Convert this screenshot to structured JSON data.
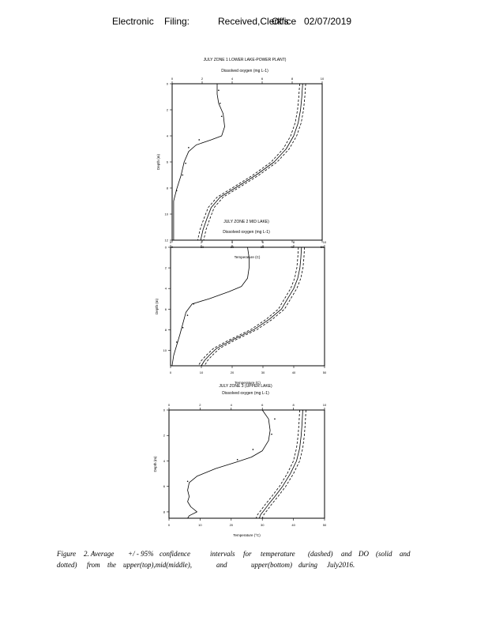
{
  "header": {
    "label": "Electronic",
    "filing": "Filing:",
    "received": "Received,Clerk's",
    "office": "Office",
    "date": "02/07/2019"
  },
  "caption": {
    "line1": [
      "Figure",
      "2. Average",
      "+/ - 95%",
      "confidence",
      "intervals",
      "for",
      "temperature",
      "(dashed)",
      "and",
      "DO",
      "(solid",
      "and"
    ],
    "line2": [
      "dotted)",
      "from",
      "the",
      "upper(top),mid(middle),",
      "and",
      "upper(bottom)",
      "during",
      "July2016."
    ]
  },
  "chart_data": [
    {
      "type": "line",
      "title": "JULY ZONE 1 LOWER LAKE-POWER PLANT)",
      "top_axis_label": "Dissolved oxygen (mg L-1)",
      "bottom_axis_label": "Temperature (C)",
      "left_axis_label": "Depth (m)",
      "do_ticks": [
        "0",
        "2",
        "4",
        "6",
        "8",
        "10"
      ],
      "temp_ticks": [
        "0",
        "10",
        "20",
        "30",
        "40",
        "50"
      ],
      "depth_ticks": [
        "0",
        "2",
        "4",
        "6",
        "8",
        "10",
        "12"
      ],
      "ylim": [
        0,
        12
      ],
      "do_xlim": [
        0,
        10
      ],
      "temp_xlim": [
        0,
        50
      ],
      "series": [
        {
          "kind": "do_solid",
          "x": [
            3.0,
            3.0,
            3.1,
            3.4,
            3.5,
            3.3,
            2.6,
            1.6,
            1.1,
            0.8,
            0.6,
            0.3,
            0.1,
            0.1,
            0.1
          ],
          "y": [
            0,
            0.8,
            1.5,
            2.3,
            3.3,
            4.0,
            4.3,
            4.7,
            5.2,
            6.0,
            7.0,
            8.1,
            9.0,
            10.5,
            12
          ]
        },
        {
          "kind": "do_dotted",
          "x": [
            3.1,
            3.2,
            3.3,
            1.8,
            1.1,
            0.9,
            0.7,
            0.3
          ],
          "y": [
            0.5,
            1.5,
            2.5,
            4.3,
            4.9,
            6.1,
            7.0,
            8.2
          ]
        },
        {
          "kind": "temp_mean",
          "x": [
            43.5,
            43.2,
            42.8,
            42.0,
            40.5,
            38.0,
            34.0,
            28.0,
            21.0,
            16.0,
            13.0,
            11.5,
            10.3,
            9.5
          ],
          "y": [
            0,
            1,
            2,
            3,
            4,
            5,
            6,
            7,
            8,
            8.7,
            9.5,
            10.4,
            11.2,
            12
          ]
        },
        {
          "kind": "temp_low",
          "x": [
            42.5,
            42.2,
            41.8,
            41.0,
            39.5,
            37.0,
            33.0,
            27.0,
            20.0,
            15.0,
            12.0,
            10.5,
            9.3,
            8.5
          ],
          "y": [
            0,
            1,
            2,
            3,
            4,
            5,
            6,
            7,
            8,
            8.7,
            9.5,
            10.4,
            11.2,
            12
          ]
        },
        {
          "kind": "temp_high",
          "x": [
            44.5,
            44.2,
            43.8,
            43.0,
            41.5,
            39.0,
            35.0,
            29.0,
            22.0,
            17.0,
            14.0,
            12.5,
            11.3,
            10.5
          ],
          "y": [
            0,
            1,
            2,
            3,
            4,
            5,
            6,
            7,
            8,
            8.7,
            9.5,
            10.4,
            11.2,
            12
          ]
        }
      ]
    },
    {
      "type": "line",
      "title": "JULY ZONE 2 MID LAKE)",
      "top_axis_label": "Dissolved oxygen (mg L-1)",
      "bottom_axis_label": "Temperature (C)",
      "left_axis_label": "Depth (m)",
      "do_ticks": [
        "0",
        "2",
        "4",
        "6",
        "8",
        "10"
      ],
      "temp_ticks": [
        "0",
        "10",
        "20",
        "30",
        "40",
        "50"
      ],
      "depth_ticks": [
        "0",
        "2",
        "4",
        "6",
        "8",
        "10"
      ],
      "ylim": [
        0,
        11.5
      ],
      "do_xlim": [
        0,
        10
      ],
      "temp_xlim": [
        0,
        50
      ],
      "series": [
        {
          "kind": "do_solid",
          "x": [
            5.0,
            5.1,
            5.1,
            5.0,
            4.6,
            3.8,
            2.5,
            1.4,
            1.0,
            0.8,
            0.6,
            0.4,
            0.2,
            0.1
          ],
          "y": [
            0,
            1,
            2,
            3,
            3.8,
            4.3,
            5.0,
            5.5,
            6.3,
            7.4,
            8.5,
            9.5,
            10.5,
            11.5
          ]
        },
        {
          "kind": "do_dotted",
          "x": [
            1.5,
            1.1,
            0.8,
            0.4
          ],
          "y": [
            5.5,
            6.6,
            7.8,
            9.2
          ]
        },
        {
          "kind": "temp_mean",
          "x": [
            42.5,
            42.3,
            42.0,
            41.3,
            40.0,
            38.0,
            36.0,
            32.0,
            27.0,
            20.0,
            15.0,
            12.5,
            11.0,
            10.0
          ],
          "y": [
            0,
            1,
            2,
            3,
            4,
            5,
            6,
            7,
            8,
            9,
            9.8,
            10.5,
            11.0,
            11.5
          ]
        },
        {
          "kind": "temp_low",
          "x": [
            41.5,
            41.3,
            41.0,
            40.3,
            39.0,
            37.0,
            35.0,
            31.0,
            26.0,
            19.0,
            14.0,
            11.5,
            10.0,
            9.0
          ],
          "y": [
            0,
            1,
            2,
            3,
            4,
            5,
            6,
            7,
            8,
            9,
            9.8,
            10.5,
            11.0,
            11.5
          ]
        },
        {
          "kind": "temp_high",
          "x": [
            43.5,
            43.3,
            43.0,
            42.3,
            41.0,
            39.0,
            37.0,
            33.0,
            28.0,
            21.0,
            16.0,
            13.5,
            12.0,
            11.0
          ],
          "y": [
            0,
            1,
            2,
            3,
            4,
            5,
            6,
            7,
            8,
            9,
            9.8,
            10.5,
            11.0,
            11.5
          ]
        }
      ]
    },
    {
      "type": "line",
      "title": "JULY ZONE 3 (UPPER LAKE)",
      "top_axis_label": "Dissolved oxygen (mg L-1)",
      "bottom_axis_label": "Temperature (°C)",
      "left_axis_label": "Depth (m)",
      "do_ticks": [
        "0",
        "2",
        "4",
        "6",
        "8",
        "10"
      ],
      "temp_ticks": [
        "0",
        "10",
        "20",
        "30",
        "40",
        "50"
      ],
      "depth_ticks": [
        "0",
        "2",
        "4",
        "6",
        "8"
      ],
      "ylim": [
        0,
        8.5
      ],
      "do_xlim": [
        0,
        10
      ],
      "temp_xlim": [
        0,
        50
      ],
      "series": [
        {
          "kind": "do_solid",
          "x": [
            6.0,
            6.4,
            6.5,
            6.4,
            6.0,
            5.3,
            4.3,
            3.0,
            1.8,
            1.3,
            1.2,
            1.3,
            1.2,
            1.4,
            1.8,
            1.3,
            1.2
          ],
          "y": [
            0,
            0.7,
            1.6,
            2.4,
            3.2,
            3.7,
            4.1,
            4.6,
            5.2,
            5.7,
            6.3,
            6.8,
            7.2,
            7.6,
            8.0,
            8.3,
            8.5
          ]
        },
        {
          "kind": "do_dotted",
          "x": [
            6.8,
            6.6,
            5.4,
            4.4,
            1.2
          ],
          "y": [
            0.7,
            1.9,
            3.1,
            3.9,
            5.6
          ]
        },
        {
          "kind": "temp_mean",
          "x": [
            43.0,
            42.8,
            42.5,
            42.0,
            41.0,
            39.0,
            36.5,
            34.0,
            32.0,
            30.5,
            29.5,
            29.0
          ],
          "y": [
            0,
            1,
            2,
            3,
            4,
            5,
            6,
            6.8,
            7.4,
            7.9,
            8.2,
            8.5
          ]
        },
        {
          "kind": "temp_low",
          "x": [
            42.0,
            41.8,
            41.5,
            41.0,
            40.0,
            38.0,
            35.5,
            33.0,
            31.0,
            29.5,
            28.5,
            28.0
          ],
          "y": [
            0,
            1,
            2,
            3,
            4,
            5,
            6,
            6.8,
            7.4,
            7.9,
            8.2,
            8.5
          ]
        },
        {
          "kind": "temp_high",
          "x": [
            44.0,
            43.8,
            43.5,
            43.0,
            42.0,
            40.0,
            37.5,
            35.0,
            33.0,
            31.5,
            30.5,
            30.0
          ],
          "y": [
            0,
            1,
            2,
            3,
            4,
            5,
            6,
            6.8,
            7.4,
            7.9,
            8.2,
            8.5
          ]
        }
      ]
    }
  ]
}
